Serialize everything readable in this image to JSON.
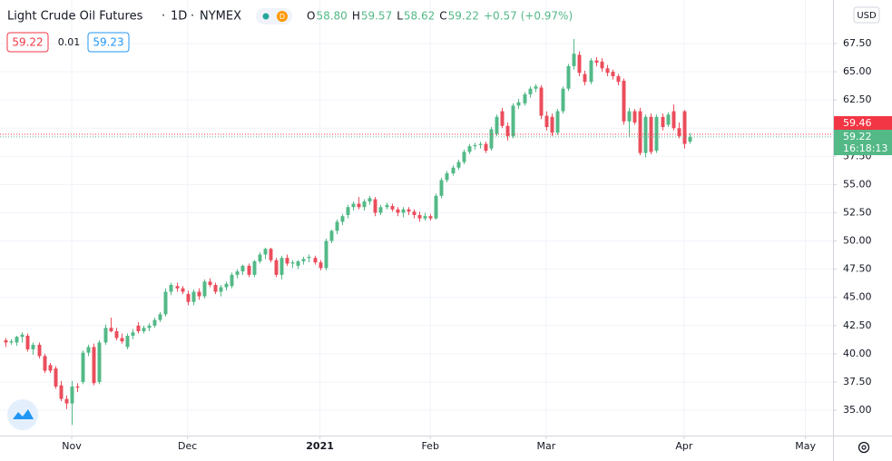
{
  "chart_data": {
    "type": "candlestick",
    "title": "Light Crude Oil Futures",
    "interval": "1D",
    "exchange": "NYMEX",
    "ohlc_header": [
      {
        "label": "O",
        "value": "58.80"
      },
      {
        "label": "H",
        "value": "59.57"
      },
      {
        "label": "L",
        "value": "58.62"
      },
      {
        "label": "C",
        "value": "59.22"
      }
    ],
    "change": "+0.57 (+0.97%)",
    "quote": {
      "bid": "59.22",
      "spread": "0.01",
      "ask": "59.23"
    },
    "currency": "USD",
    "up_color": "#53b987",
    "down_color": "#eb4d5c",
    "grid": true,
    "xlim": [
      -1,
      150
    ],
    "xticks": [
      {
        "value": 12,
        "label": "Nov"
      },
      {
        "value": 33,
        "label": "Dec"
      },
      {
        "value": 57,
        "label": "2021"
      },
      {
        "value": 77,
        "label": "Feb"
      },
      {
        "value": 98,
        "label": "Mar"
      },
      {
        "value": 123,
        "label": "Apr"
      },
      {
        "value": 145,
        "label": "May"
      }
    ],
    "ylim": [
      32.75,
      71.36
    ],
    "yticks": [
      {
        "value": 35,
        "label": "35.00"
      },
      {
        "value": 37.5,
        "label": "37.50"
      },
      {
        "value": 40,
        "label": "40.00"
      },
      {
        "value": 42.5,
        "label": "42.50"
      },
      {
        "value": 45,
        "label": "45.00"
      },
      {
        "value": 47.5,
        "label": "47.50"
      },
      {
        "value": 50,
        "label": "50.00"
      },
      {
        "value": 52.5,
        "label": "52.50"
      },
      {
        "value": 55,
        "label": "55.00"
      },
      {
        "value": 57.5,
        "label": "57.50"
      },
      {
        "value": 60,
        "label": "60.00"
      },
      {
        "value": 62.5,
        "label": "62.50"
      },
      {
        "value": 65,
        "label": "65.00"
      },
      {
        "value": 67.5,
        "label": "67.50"
      }
    ],
    "price_lines": [
      {
        "value": 59.46,
        "color": "#f23645"
      },
      {
        "value": 59.22,
        "color": "#53b987",
        "countdown": "16:18:13"
      }
    ],
    "ohlc": [
      [
        41.2,
        41.4,
        40.6,
        41.0
      ],
      [
        41.0,
        41.3,
        40.8,
        41.1
      ],
      [
        41.0,
        41.6,
        40.7,
        41.5
      ],
      [
        41.5,
        41.9,
        41.0,
        41.7
      ],
      [
        41.6,
        41.8,
        40.2,
        40.4
      ],
      [
        40.4,
        41.0,
        39.9,
        40.8
      ],
      [
        40.8,
        41.0,
        39.6,
        39.8
      ],
      [
        39.8,
        40.0,
        38.3,
        38.5
      ],
      [
        39.0,
        39.2,
        38.3,
        38.5
      ],
      [
        38.7,
        38.9,
        36.9,
        37.1
      ],
      [
        37.2,
        37.6,
        35.8,
        36.0
      ],
      [
        36.0,
        36.3,
        35.1,
        35.6
      ],
      [
        35.6,
        37.6,
        33.7,
        37.1
      ],
      [
        37.1,
        37.4,
        36.6,
        37.0
      ],
      [
        37.5,
        40.3,
        37.3,
        40.1
      ],
      [
        40.1,
        40.8,
        39.8,
        40.6
      ],
      [
        40.6,
        40.9,
        37.2,
        37.4
      ],
      [
        37.5,
        41.2,
        37.3,
        41.0
      ],
      [
        41.0,
        42.6,
        40.8,
        42.3
      ],
      [
        42.3,
        43.2,
        41.9,
        42.0
      ],
      [
        42.0,
        42.3,
        41.2,
        41.4
      ],
      [
        41.4,
        41.8,
        40.9,
        41.1
      ],
      [
        40.6,
        41.8,
        40.4,
        41.6
      ],
      [
        41.6,
        42.2,
        41.3,
        41.9
      ],
      [
        42.5,
        42.8,
        41.8,
        42.0
      ],
      [
        42.0,
        42.5,
        41.8,
        42.3
      ],
      [
        42.3,
        42.7,
        42.0,
        42.5
      ],
      [
        42.5,
        43.2,
        42.3,
        43.0
      ],
      [
        43.0,
        43.7,
        42.8,
        43.5
      ],
      [
        43.5,
        45.8,
        43.3,
        45.5
      ],
      [
        45.5,
        46.3,
        45.2,
        46.1
      ],
      [
        46.0,
        46.3,
        45.5,
        45.8
      ],
      [
        45.8,
        46.0,
        45.3,
        45.5
      ],
      [
        45.3,
        45.6,
        44.3,
        44.6
      ],
      [
        44.6,
        45.7,
        44.3,
        45.5
      ],
      [
        45.5,
        45.8,
        44.8,
        45.1
      ],
      [
        45.1,
        46.6,
        44.9,
        46.4
      ],
      [
        46.4,
        46.7,
        45.9,
        46.1
      ],
      [
        46.1,
        46.3,
        45.3,
        45.5
      ],
      [
        45.5,
        46.1,
        45.1,
        45.9
      ],
      [
        45.9,
        46.4,
        45.6,
        46.2
      ],
      [
        46.0,
        47.2,
        45.8,
        47.0
      ],
      [
        47.0,
        47.5,
        46.7,
        47.3
      ],
      [
        47.3,
        47.9,
        47.0,
        47.8
      ],
      [
        47.8,
        48.0,
        46.8,
        47.0
      ],
      [
        47.0,
        48.3,
        46.8,
        48.2
      ],
      [
        48.2,
        49.0,
        48.0,
        48.8
      ],
      [
        48.8,
        49.4,
        48.4,
        49.3
      ],
      [
        49.3,
        49.4,
        48.1,
        48.3
      ],
      [
        48.3,
        48.5,
        46.8,
        47.0
      ],
      [
        47.0,
        48.7,
        46.6,
        48.5
      ],
      [
        48.5,
        48.8,
        47.8,
        48.0
      ],
      [
        48.0,
        48.3,
        47.6,
        48.1
      ],
      [
        47.8,
        48.3,
        47.5,
        48.2
      ],
      [
        48.2,
        48.6,
        47.9,
        48.4
      ],
      [
        48.5,
        48.8,
        48.1,
        48.6
      ],
      [
        48.5,
        48.7,
        47.9,
        48.1
      ],
      [
        48.1,
        48.3,
        47.4,
        47.6
      ],
      [
        47.6,
        50.2,
        47.4,
        50.0
      ],
      [
        50.0,
        51.0,
        49.8,
        50.9
      ],
      [
        50.9,
        51.9,
        50.6,
        51.7
      ],
      [
        51.7,
        52.4,
        51.4,
        52.2
      ],
      [
        52.3,
        53.2,
        52.0,
        53.0
      ],
      [
        53.0,
        53.5,
        52.7,
        53.3
      ],
      [
        53.3,
        53.9,
        52.8,
        53.0
      ],
      [
        53.0,
        53.7,
        52.7,
        53.5
      ],
      [
        53.5,
        54.0,
        53.2,
        53.8
      ],
      [
        53.7,
        53.9,
        52.2,
        52.5
      ],
      [
        52.5,
        53.2,
        52.3,
        53.0
      ],
      [
        53.0,
        53.4,
        52.8,
        53.2
      ],
      [
        53.1,
        53.3,
        52.6,
        52.8
      ],
      [
        52.8,
        53.0,
        52.2,
        52.5
      ],
      [
        52.5,
        53.0,
        52.1,
        52.8
      ],
      [
        52.8,
        53.0,
        52.3,
        52.6
      ],
      [
        52.6,
        52.8,
        52.0,
        52.3
      ],
      [
        52.3,
        52.6,
        51.7,
        52.0
      ],
      [
        52.0,
        52.5,
        51.8,
        52.2
      ],
      [
        52.2,
        52.4,
        51.8,
        52.0
      ],
      [
        52.0,
        54.2,
        51.9,
        54.0
      ],
      [
        54.0,
        55.6,
        53.8,
        55.4
      ],
      [
        55.4,
        56.2,
        55.2,
        56.0
      ],
      [
        56.0,
        56.7,
        55.8,
        56.5
      ],
      [
        56.5,
        57.2,
        56.3,
        57.0
      ],
      [
        57.0,
        58.1,
        56.8,
        57.9
      ],
      [
        57.9,
        58.6,
        57.7,
        58.4
      ],
      [
        58.4,
        58.7,
        58.1,
        58.5
      ],
      [
        58.5,
        58.8,
        58.2,
        58.6
      ],
      [
        58.6,
        58.8,
        57.8,
        58.0
      ],
      [
        58.2,
        60.1,
        58.0,
        59.9
      ],
      [
        59.5,
        61.2,
        59.3,
        61.0
      ],
      [
        61.5,
        61.8,
        60.0,
        60.2
      ],
      [
        60.2,
        60.5,
        58.9,
        59.3
      ],
      [
        59.3,
        62.2,
        59.1,
        62.0
      ],
      [
        62.0,
        62.6,
        61.7,
        62.3
      ],
      [
        62.2,
        63.2,
        62.0,
        63.0
      ],
      [
        63.0,
        63.7,
        62.7,
        63.5
      ],
      [
        63.5,
        63.9,
        63.2,
        63.7
      ],
      [
        63.6,
        63.8,
        60.8,
        61.1
      ],
      [
        61.1,
        61.5,
        59.8,
        60.1
      ],
      [
        61.0,
        61.3,
        59.3,
        59.6
      ],
      [
        59.6,
        61.7,
        59.4,
        61.5
      ],
      [
        61.5,
        63.7,
        61.3,
        63.5
      ],
      [
        63.5,
        65.7,
        63.3,
        65.5
      ],
      [
        65.5,
        67.9,
        65.2,
        66.6
      ],
      [
        66.5,
        66.8,
        64.6,
        64.9
      ],
      [
        64.8,
        65.1,
        63.8,
        64.1
      ],
      [
        64.1,
        66.2,
        63.9,
        66.0
      ],
      [
        66.0,
        66.3,
        65.5,
        65.8
      ],
      [
        65.9,
        66.2,
        65.0,
        65.3
      ],
      [
        65.3,
        65.6,
        64.6,
        64.9
      ],
      [
        65.0,
        65.2,
        64.3,
        64.6
      ],
      [
        64.6,
        64.8,
        63.8,
        64.1
      ],
      [
        64.2,
        64.4,
        60.3,
        60.6
      ],
      [
        60.6,
        61.8,
        59.2,
        61.5
      ],
      [
        61.5,
        61.7,
        60.3,
        60.5
      ],
      [
        61.5,
        61.8,
        57.6,
        57.8
      ],
      [
        57.8,
        61.2,
        57.4,
        61.0
      ],
      [
        61.0,
        61.3,
        57.7,
        57.9
      ],
      [
        58.0,
        61.2,
        57.8,
        61.0
      ],
      [
        61.0,
        61.3,
        59.8,
        60.1
      ],
      [
        60.3,
        61.4,
        60.1,
        61.2
      ],
      [
        61.5,
        62.1,
        59.8,
        60.0
      ],
      [
        60.0,
        60.5,
        59.1,
        59.3
      ],
      [
        61.5,
        61.6,
        58.2,
        58.6
      ],
      [
        58.8,
        59.57,
        58.62,
        59.22
      ]
    ]
  }
}
